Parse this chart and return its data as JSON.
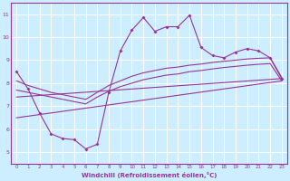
{
  "background_color": "#cceeff",
  "grid_color": "#ffffff",
  "line_color": "#993399",
  "x_label": "Windchill (Refroidissement éolien,°C)",
  "yticks": [
    5,
    6,
    7,
    8,
    9,
    10,
    11
  ],
  "xticks": [
    0,
    1,
    2,
    3,
    4,
    5,
    6,
    7,
    8,
    9,
    10,
    11,
    12,
    13,
    14,
    15,
    16,
    17,
    18,
    19,
    20,
    21,
    22,
    23
  ],
  "ylim": [
    4.5,
    11.5
  ],
  "xlim": [
    -0.5,
    23.5
  ],
  "curve1_x": [
    0,
    1,
    2,
    3,
    4,
    5,
    6,
    7,
    8,
    9,
    10,
    11,
    12,
    13,
    14,
    15,
    16,
    17,
    18,
    19,
    20,
    21,
    22,
    23
  ],
  "curve1_y": [
    8.5,
    7.75,
    6.7,
    5.8,
    5.6,
    5.55,
    5.15,
    5.35,
    7.6,
    9.4,
    10.3,
    10.85,
    10.25,
    10.45,
    10.45,
    10.95,
    9.55,
    9.2,
    9.1,
    9.35,
    9.5,
    9.4,
    9.1,
    8.2
  ],
  "curve2_x": [
    0,
    1,
    2,
    3,
    4,
    5,
    6,
    7,
    8,
    9,
    10,
    11,
    12,
    13,
    14,
    15,
    16,
    17,
    18,
    19,
    20,
    21,
    22,
    23
  ],
  "curve2_y": [
    8.1,
    7.9,
    7.75,
    7.6,
    7.5,
    7.4,
    7.3,
    7.6,
    7.9,
    8.1,
    8.3,
    8.45,
    8.55,
    8.65,
    8.7,
    8.78,
    8.83,
    8.9,
    8.95,
    9.0,
    9.05,
    9.08,
    9.1,
    8.25
  ],
  "curve3_x": [
    0,
    1,
    2,
    3,
    4,
    5,
    6,
    7,
    8,
    9,
    10,
    11,
    12,
    13,
    14,
    15,
    16,
    17,
    18,
    19,
    20,
    21,
    22,
    23
  ],
  "curve3_y": [
    7.7,
    7.6,
    7.5,
    7.4,
    7.3,
    7.2,
    7.1,
    7.4,
    7.65,
    7.85,
    8.0,
    8.15,
    8.25,
    8.35,
    8.4,
    8.5,
    8.55,
    8.62,
    8.68,
    8.73,
    8.78,
    8.82,
    8.85,
    8.1
  ],
  "curve4_x": [
    0,
    23
  ],
  "curve4_y": [
    6.5,
    8.1
  ],
  "curve5_x": [
    0,
    23
  ],
  "curve5_y": [
    7.4,
    8.2
  ]
}
